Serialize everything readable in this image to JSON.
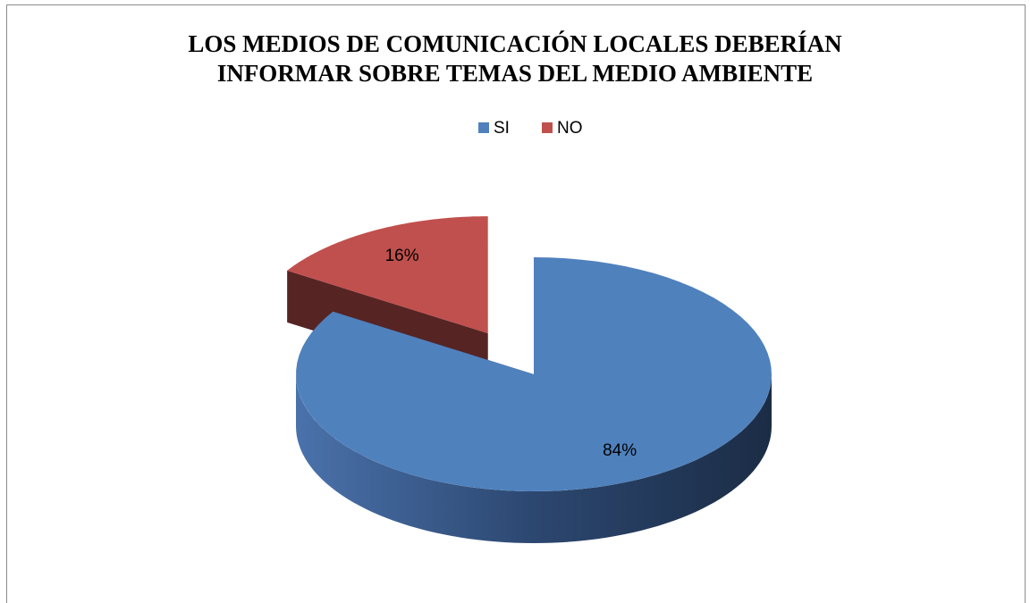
{
  "chart_data": {
    "type": "pie",
    "title": "LOS MEDIOS DE COMUNICACIÓN LOCALES DEBERÍAN INFORMAR SOBRE TEMAS DEL MEDIO AMBIENTE",
    "categories": [
      "SI",
      "NO"
    ],
    "values": [
      84,
      16
    ],
    "value_labels": [
      "84%",
      "16%"
    ],
    "colors": [
      "#4f81bd",
      "#c0504d"
    ],
    "legend": "top"
  }
}
